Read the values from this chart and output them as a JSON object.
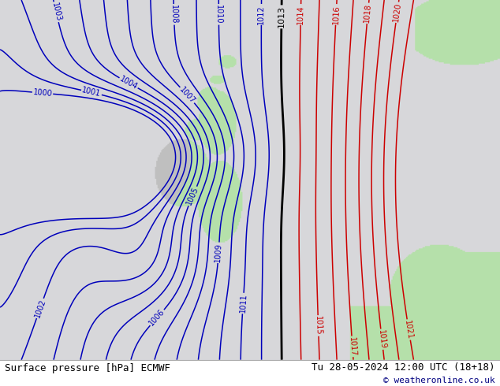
{
  "title_left": "Surface pressure [hPa] ECMWF",
  "title_right": "Tu 28-05-2024 12:00 UTC (18+18)",
  "copyright": "© weatheronline.co.uk",
  "sea_color": [
    0.847,
    0.847,
    0.855
  ],
  "land_gray_color": [
    0.75,
    0.75,
    0.75
  ],
  "green_color": [
    0.71,
    0.88,
    0.67
  ],
  "isobar_blue": "#0000bb",
  "isobar_black": "#000000",
  "isobar_red": "#cc0000",
  "lw_blue": 1.1,
  "lw_black": 2.0,
  "lw_red": 1.1,
  "label_fs": 7,
  "title_fs": 9,
  "copy_fs": 8
}
